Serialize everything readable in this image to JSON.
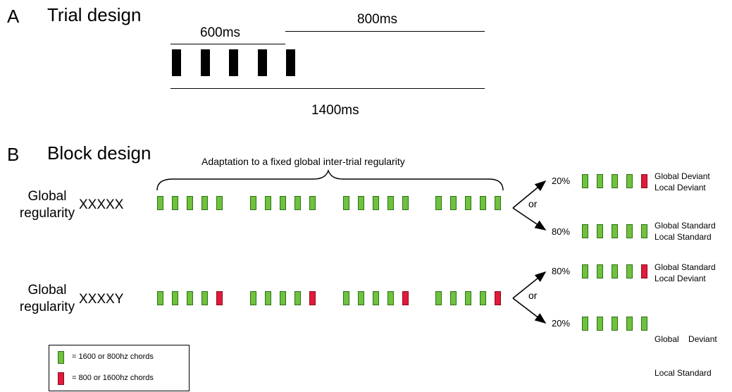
{
  "panel_a": {
    "letter": "A",
    "title": "Trial design",
    "label_600": "600ms",
    "label_800": "800ms",
    "label_1400": "1400ms"
  },
  "panel_b": {
    "letter": "B",
    "title": "Block design",
    "brace_label": "Adaptation to a fixed global inter-trial regularity",
    "rows": [
      {
        "label_line1": "Global",
        "label_line2": "regularity",
        "sequence": "XXXXX",
        "last_chord": "green",
        "outcomes": [
          {
            "pct": "20%",
            "last_chord": "red",
            "line1": "Global Deviant",
            "line2": "Local Deviant"
          },
          {
            "pct": "80%",
            "last_chord": "green",
            "line1": "Global Standard",
            "line2": "Local Standard"
          }
        ]
      },
      {
        "label_line1": "Global",
        "label_line2": "regularity",
        "sequence": "XXXXY",
        "last_chord": "red",
        "outcomes": [
          {
            "pct": "80%",
            "last_chord": "red",
            "line1": "Global Standard",
            "line2": "Local Deviant"
          },
          {
            "pct": "20%",
            "last_chord": "green",
            "line1": "Global    Deviant",
            "line2": "Local Standard"
          }
        ]
      }
    ],
    "or_label": "or"
  },
  "legend": {
    "green_label": "= 1600 or 800hz chords",
    "red_label": "= 800 or 1600hz chords"
  },
  "colors": {
    "green_chord": "#6ec23c",
    "red_chord": "#e11a3a"
  }
}
